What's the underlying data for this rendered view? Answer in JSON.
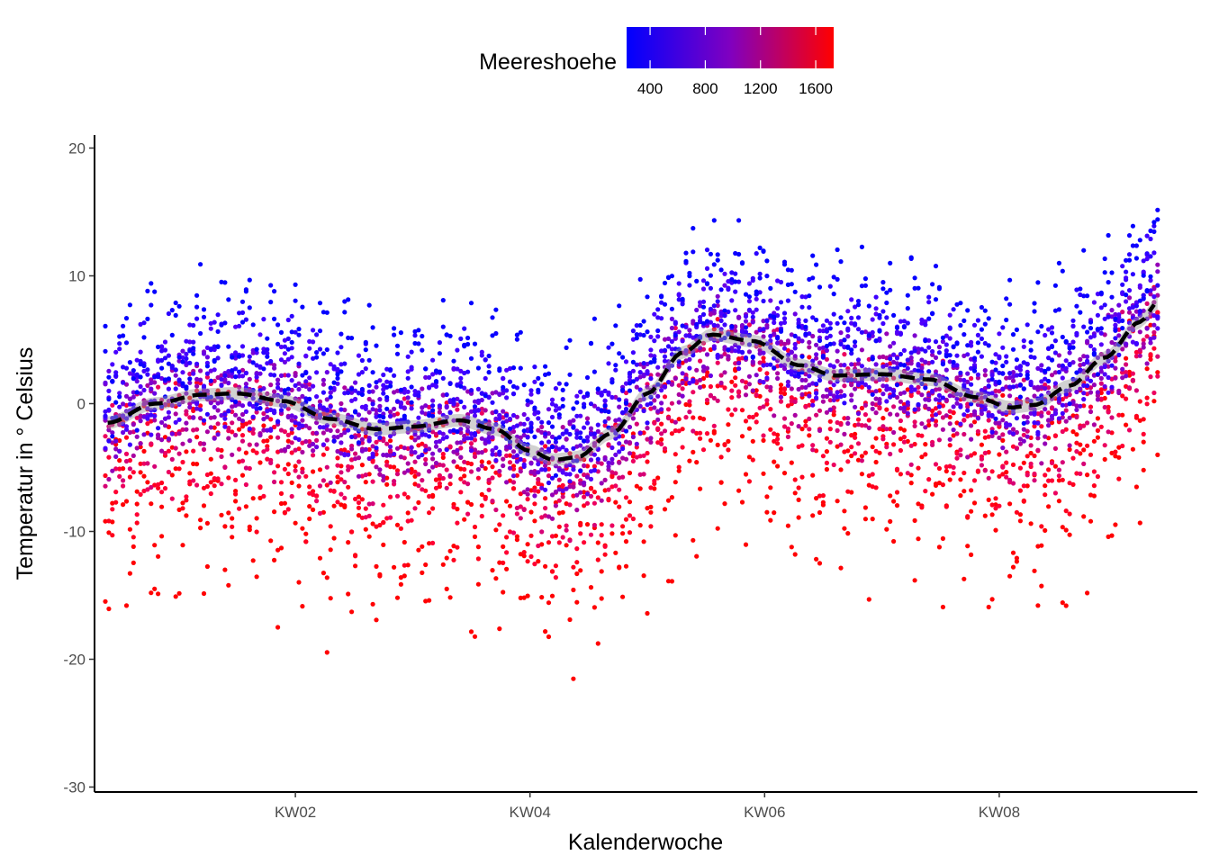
{
  "chart_data": {
    "type": "scatter",
    "xlabel": "Kalenderwoche",
    "ylabel": "Temperatur in ° Celsius",
    "x_ticks": [
      {
        "week": 2,
        "label": "KW02"
      },
      {
        "week": 4,
        "label": "KW04"
      },
      {
        "week": 6,
        "label": "KW06"
      },
      {
        "week": 8,
        "label": "KW08"
      }
    ],
    "xlim": [
      0.0,
      9.5
    ],
    "y_ticks": [
      20,
      10,
      0,
      -10,
      -20,
      -30
    ],
    "ylim": [
      -30.3,
      21.0
    ],
    "grid": false,
    "legend": {
      "title": "Meereshoehe",
      "position": "top",
      "type": "colorbar",
      "color_low": "#0000ff",
      "color_high": "#ff0000",
      "range": [
        230,
        1730
      ],
      "ticks": [
        400,
        800,
        1200,
        1600
      ]
    },
    "smooth_line": {
      "style": "dashed",
      "color": "#000000",
      "points": [
        {
          "week": 0.4,
          "temp": -1.5
        },
        {
          "week": 0.8,
          "temp": 0.0
        },
        {
          "week": 1.2,
          "temp": 0.7
        },
        {
          "week": 1.5,
          "temp": 0.8
        },
        {
          "week": 1.9,
          "temp": 0.2
        },
        {
          "week": 2.3,
          "temp": -1.2
        },
        {
          "week": 2.7,
          "temp": -2.0
        },
        {
          "week": 3.0,
          "temp": -1.8
        },
        {
          "week": 3.4,
          "temp": -1.3
        },
        {
          "week": 3.7,
          "temp": -2.0
        },
        {
          "week": 4.0,
          "temp": -3.7
        },
        {
          "week": 4.2,
          "temp": -4.4
        },
        {
          "week": 4.4,
          "temp": -4.2
        },
        {
          "week": 4.7,
          "temp": -2.3
        },
        {
          "week": 5.0,
          "temp": 0.8
        },
        {
          "week": 5.3,
          "temp": 4.0
        },
        {
          "week": 5.55,
          "temp": 5.4
        },
        {
          "week": 5.9,
          "temp": 4.9
        },
        {
          "week": 6.3,
          "temp": 3.0
        },
        {
          "week": 6.6,
          "temp": 2.2
        },
        {
          "week": 7.0,
          "temp": 2.3
        },
        {
          "week": 7.4,
          "temp": 1.9
        },
        {
          "week": 7.8,
          "temp": 0.5
        },
        {
          "week": 8.1,
          "temp": -0.3
        },
        {
          "week": 8.3,
          "temp": -0.1
        },
        {
          "week": 8.6,
          "temp": 1.4
        },
        {
          "week": 8.9,
          "temp": 3.6
        },
        {
          "week": 9.2,
          "temp": 6.4
        },
        {
          "week": 9.35,
          "temp": 7.9
        }
      ]
    },
    "ribbon": {
      "color": "#999999",
      "half_width": 0.5
    },
    "scatter_series": {
      "x_start_week": 0.38,
      "x_end_week": 9.35,
      "points_per_station": 300,
      "stations": [
        {
          "altitude": 250,
          "offset": 4.5
        },
        {
          "altitude": 300,
          "offset": 3.8
        },
        {
          "altitude": 420,
          "offset": 2.5
        },
        {
          "altitude": 500,
          "offset": 2.0
        },
        {
          "altitude": 550,
          "offset": 1.6
        },
        {
          "altitude": 600,
          "offset": 1.2
        },
        {
          "altitude": 700,
          "offset": 0.5
        },
        {
          "altitude": 800,
          "offset": 0.0
        },
        {
          "altitude": 900,
          "offset": -0.5
        },
        {
          "altitude": 1000,
          "offset": -1.1
        },
        {
          "altitude": 1200,
          "offset": -2.2
        },
        {
          "altitude": 1300,
          "offset": -2.8
        },
        {
          "altitude": 1500,
          "offset": -4.0
        },
        {
          "altitude": 1600,
          "offset": -4.8
        },
        {
          "altitude": 1700,
          "offset": -6.0
        },
        {
          "altitude": 1720,
          "offset": -9.5
        }
      ]
    }
  }
}
